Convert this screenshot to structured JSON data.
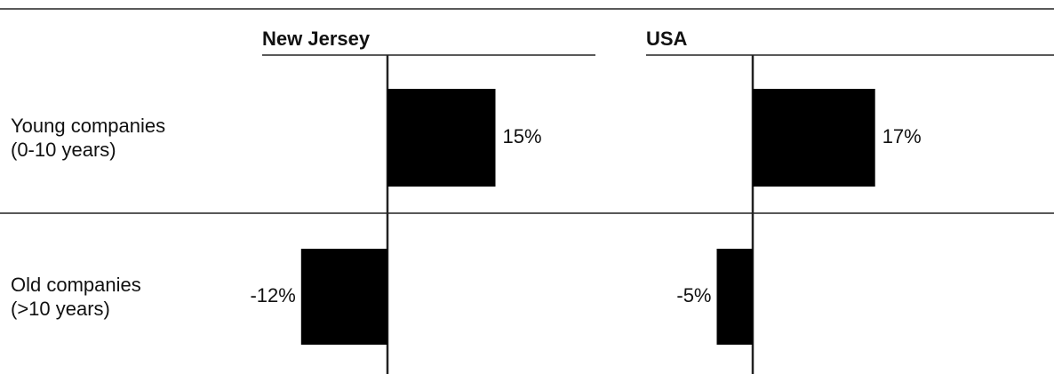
{
  "chart_data": {
    "type": "bar",
    "orientation": "horizontal",
    "layout": "panels",
    "categories": [
      "Young companies\n(0-10 years)",
      "Old companies\n(>10 years)"
    ],
    "series": [
      {
        "name": "New Jersey",
        "color": "#000000",
        "values": [
          15,
          -12
        ],
        "value_labels": [
          "15%",
          "-12%"
        ]
      },
      {
        "name": "USA",
        "color": "#000000",
        "values": [
          17,
          -5
        ],
        "value_labels": [
          "17%",
          "-5%"
        ]
      }
    ]
  }
}
